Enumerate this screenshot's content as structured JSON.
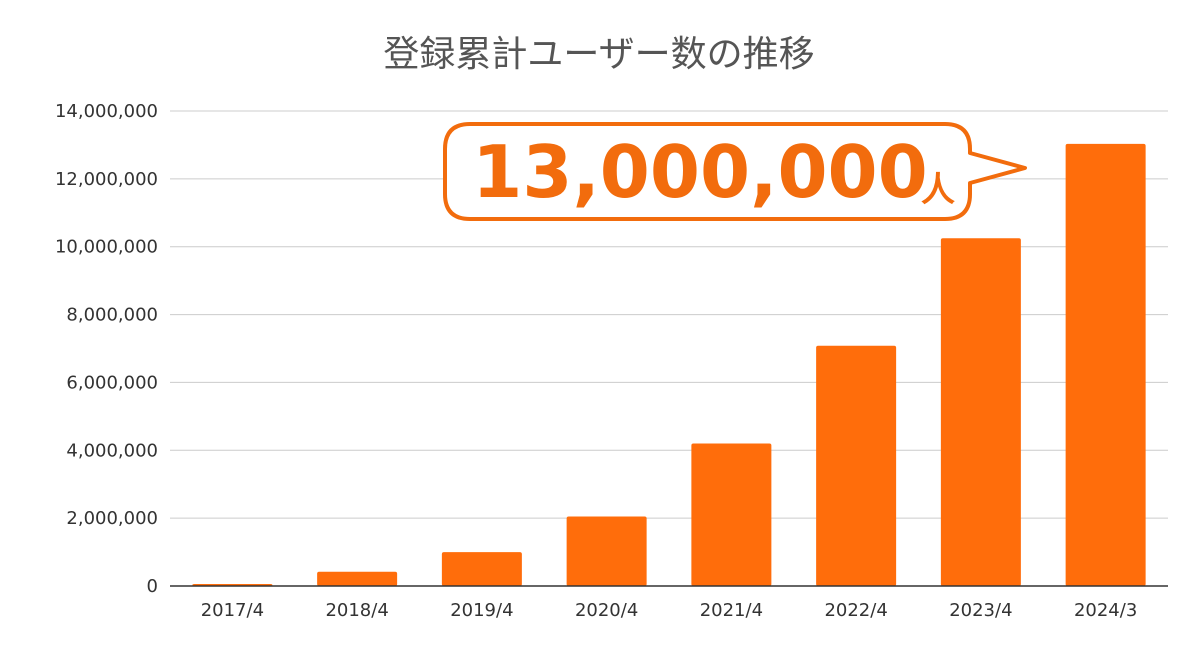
{
  "chart_data": {
    "type": "bar",
    "title": "登録累計ユーザー数の推移",
    "categories": [
      "2017/4",
      "2018/4",
      "2019/4",
      "2020/4",
      "2021/4",
      "2022/4",
      "2023/4",
      "2024/3"
    ],
    "values": [
      60000,
      420000,
      1000000,
      2050000,
      4200000,
      7080000,
      10250000,
      13030000
    ],
    "ylim": [
      0,
      14000000
    ],
    "yticks": [
      0,
      2000000,
      4000000,
      6000000,
      8000000,
      10000000,
      12000000,
      14000000
    ],
    "ytick_labels": [
      "0",
      "2,000,000",
      "4,000,000",
      "6,000,000",
      "8,000,000",
      "10,000,000",
      "12,000,000",
      "14,000,000"
    ],
    "grid": true,
    "bar_color": "#FF6D0B",
    "annotation": {
      "value_text": "13,000,000",
      "unit_text": "人",
      "color": "#F26C0D"
    }
  }
}
